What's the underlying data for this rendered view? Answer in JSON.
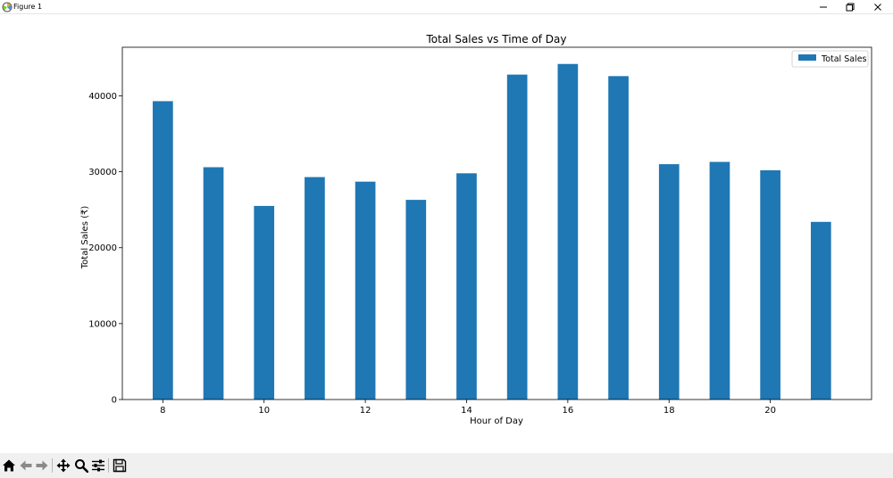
{
  "window": {
    "title": "Figure 1",
    "icons": [
      "matplotlib-icon",
      "minimize-icon",
      "maximize-icon",
      "close-icon"
    ]
  },
  "toolbar": {
    "icons": [
      "home-icon",
      "back-icon",
      "forward-icon",
      "pan-icon",
      "zoom-icon",
      "configure-subplots-icon",
      "save-icon"
    ]
  },
  "chart_data": {
    "type": "bar",
    "title": "Total Sales vs Time of Day",
    "xlabel": "Hour of Day",
    "ylabel": "Total Sales (₹)",
    "x": [
      8,
      9,
      10,
      11,
      12,
      13,
      14,
      15,
      16,
      17,
      18,
      19,
      20,
      21
    ],
    "series": [
      {
        "name": "Total Sales",
        "color": "#1f77b4",
        "values": [
          39300,
          30600,
          25500,
          29300,
          28700,
          26300,
          29800,
          42800,
          44200,
          42600,
          31000,
          31300,
          30200,
          23400
        ]
      }
    ],
    "xlim": [
      7.2,
      22.0
    ],
    "ylim": [
      0,
      46400
    ],
    "xticks": [
      "8",
      "10",
      "12",
      "14",
      "16",
      "18",
      "20"
    ],
    "yticks": [
      "0",
      "10000",
      "20000",
      "30000",
      "40000"
    ],
    "grid": false,
    "legend": "top-right"
  }
}
